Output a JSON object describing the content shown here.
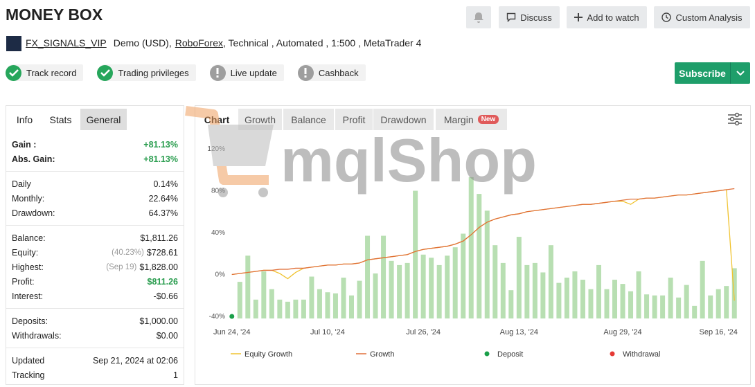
{
  "header": {
    "title": "MONEY BOX",
    "actions": [
      "Discuss",
      "Add to watch",
      "Custom Analysis"
    ],
    "account": {
      "name": "FX_SIGNALS_VIP",
      "type": "Demo (USD),",
      "broker": "RoboForex",
      "details": ", Technical , Automated , 1:500 , MetaTrader 4"
    },
    "badges": [
      {
        "label": "Track record",
        "verified": true
      },
      {
        "label": "Trading privileges",
        "verified": true
      },
      {
        "label": "Live update",
        "verified": false
      },
      {
        "label": "Cashback",
        "verified": false
      }
    ],
    "subscribe": "Subscribe"
  },
  "stats": {
    "tabs": [
      "Info",
      "Stats",
      "General"
    ],
    "groups": [
      [
        {
          "label": "Gain :",
          "value": "+81.13%",
          "color": "#2a9d4f"
        },
        {
          "label": "Abs. Gain:",
          "value": "+81.13%",
          "color": "#2a9d4f"
        }
      ],
      [
        {
          "label": "Daily",
          "value": "0.14%"
        },
        {
          "label": "Monthly:",
          "value": "22.64%"
        },
        {
          "label": "Drawdown:",
          "value": "64.37%"
        }
      ],
      [
        {
          "label": "Balance:",
          "value": "$1,811.26"
        },
        {
          "label": "Equity:",
          "note": "(40.23%)",
          "value": "$728.61"
        },
        {
          "label": "Highest:",
          "note": "(Sep 19)",
          "value": "$1,828.00"
        },
        {
          "label": "Profit:",
          "value": "$811.26",
          "color": "#2a9d4f"
        },
        {
          "label": "Interest:",
          "value": "-$0.66"
        }
      ],
      [
        {
          "label": "Deposits:",
          "value": "$1,000.00"
        },
        {
          "label": "Withdrawals:",
          "value": "$0.00"
        }
      ],
      [
        {
          "label": "Updated",
          "value": "Sep 21, 2024 at 02:06"
        },
        {
          "label": "Tracking",
          "value": "1"
        }
      ]
    ]
  },
  "chart_panel": {
    "tabs": [
      "Chart",
      "Growth",
      "Balance",
      "Profit",
      "Drawdown",
      "Margin"
    ],
    "new_badge": "New",
    "watermark": "mqlShop"
  },
  "chart_data": {
    "type": "combo",
    "categories": [
      "Jun 24, '24",
      null,
      null,
      null,
      null,
      null,
      null,
      null,
      null,
      null,
      null,
      null,
      "Jul 10, '24",
      null,
      null,
      null,
      null,
      null,
      null,
      null,
      null,
      null,
      null,
      null,
      "Jul 26, '24",
      null,
      null,
      null,
      null,
      null,
      null,
      null,
      null,
      null,
      null,
      null,
      "Aug 13, '24",
      null,
      null,
      null,
      null,
      null,
      null,
      null,
      null,
      null,
      null,
      null,
      null,
      "Aug 29, '24",
      null,
      null,
      null,
      null,
      null,
      null,
      null,
      null,
      null,
      null,
      null,
      "Sep 16, '24",
      null,
      null
    ],
    "series": [
      {
        "kind": "bar",
        "color": "#b8dfb2",
        "values": [
          null,
          -7,
          18,
          -24,
          3,
          -14,
          -24,
          -26,
          -24,
          -24,
          -2,
          -14,
          -17,
          -18,
          -3,
          -20,
          -6,
          37,
          1,
          37,
          13,
          9,
          11,
          80,
          19,
          16,
          9,
          18,
          26,
          39,
          93,
          77,
          61,
          28,
          11,
          -15,
          36,
          9,
          11,
          2,
          28,
          -8,
          -3,
          3,
          -5,
          -14,
          9,
          -14,
          -5,
          -9,
          -16,
          3,
          -19,
          -20,
          -20,
          -3,
          -22,
          -10,
          -30,
          13,
          -20,
          -14,
          -11,
          6
        ]
      },
      {
        "name": "Equity Growth",
        "kind": "line",
        "color": "#f0c330",
        "values": [
          0,
          1,
          2,
          3,
          4,
          4,
          1,
          -4,
          2,
          6,
          7,
          8,
          9,
          9,
          10,
          10,
          11,
          14,
          15,
          16,
          17,
          18,
          19,
          22,
          24,
          25,
          26,
          27,
          29,
          32,
          38,
          45,
          50,
          53,
          55,
          57,
          58,
          60,
          61,
          62,
          63,
          64,
          65,
          66,
          67,
          67,
          68,
          69,
          70,
          70,
          67,
          72,
          73,
          73,
          74,
          75,
          76,
          76,
          77,
          78,
          79,
          80,
          81,
          -25
        ]
      },
      {
        "name": "Growth",
        "kind": "line",
        "color": "#e0703a",
        "values": [
          0,
          1,
          2,
          3,
          4,
          4,
          5,
          5,
          6,
          6,
          7,
          8,
          9,
          9,
          10,
          10,
          11,
          14,
          15,
          16,
          17,
          18,
          19,
          22,
          24,
          25,
          26,
          27,
          29,
          32,
          38,
          45,
          50,
          53,
          55,
          57,
          58,
          60,
          61,
          62,
          63,
          64,
          65,
          66,
          67,
          67,
          68,
          69,
          70,
          71,
          72,
          72,
          73,
          73,
          74,
          75,
          76,
          76,
          77,
          78,
          79,
          80,
          81,
          82
        ]
      },
      {
        "name": "Deposit",
        "kind": "dot",
        "color": "#1a9f49",
        "values": [
          -40,
          null,
          null,
          null,
          null,
          null,
          null,
          null,
          null,
          null,
          null,
          null,
          null,
          null,
          null,
          null,
          null,
          null,
          null,
          null,
          null,
          null,
          null,
          null,
          null,
          null,
          null,
          null,
          null,
          null,
          null,
          null,
          null,
          null,
          null,
          null,
          null,
          null,
          null,
          null,
          null,
          null,
          null,
          null,
          null,
          null,
          null,
          null,
          null,
          null,
          null,
          null,
          null,
          null,
          null,
          null,
          null,
          null,
          null,
          null,
          null,
          null,
          null,
          null
        ]
      },
      {
        "name": "Withdrawal",
        "kind": "dot",
        "color": "#e53935",
        "values": [
          null,
          null,
          null,
          null,
          null,
          null,
          null,
          null,
          null,
          null,
          null,
          null,
          null,
          null,
          null,
          null,
          null,
          null,
          null,
          null,
          null,
          null,
          null,
          null,
          null,
          null,
          null,
          null,
          null,
          null,
          null,
          null,
          null,
          null,
          null,
          null,
          null,
          null,
          null,
          null,
          null,
          null,
          null,
          null,
          null,
          null,
          null,
          null,
          null,
          null,
          null,
          null,
          null,
          null,
          null,
          null,
          null,
          null,
          null,
          null,
          null,
          null,
          null,
          null
        ]
      }
    ],
    "ylim": [
      -42,
      126
    ],
    "yticks": [
      {
        "value": -40,
        "label": "-40%"
      },
      {
        "value": 0,
        "label": "0%"
      },
      {
        "value": 40,
        "label": "40%"
      },
      {
        "value": 80,
        "label": "80%"
      },
      {
        "value": 120,
        "label": "120%"
      }
    ],
    "grid": false,
    "legend": "bottom"
  }
}
